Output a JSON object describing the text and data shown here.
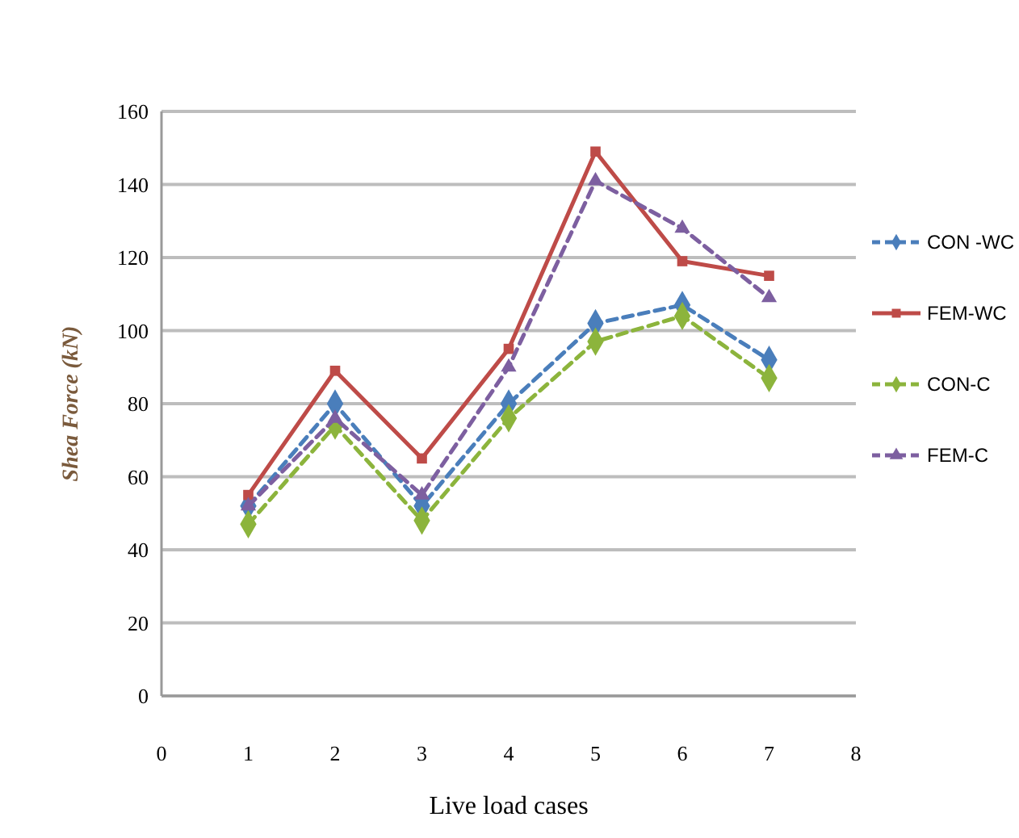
{
  "chart_data": {
    "type": "line",
    "xlabel": "Live  load cases",
    "ylabel": "Shea Force  (kN)",
    "x": [
      1,
      2,
      3,
      4,
      5,
      6,
      7
    ],
    "xlim": [
      0,
      8
    ],
    "xticks": [
      0,
      1,
      2,
      3,
      4,
      5,
      6,
      7,
      8
    ],
    "ylim": [
      0,
      160
    ],
    "yticks": [
      0,
      20,
      40,
      60,
      80,
      100,
      120,
      140,
      160
    ],
    "grid": "y",
    "legend": "right",
    "series": [
      {
        "name": "CON -WC",
        "color": "#4a7ebb",
        "marker": "diamond",
        "line_style": "dashed",
        "values": [
          52,
          80,
          52,
          80,
          102,
          107,
          92
        ]
      },
      {
        "name": "FEM-WC",
        "color": "#be4b48",
        "marker": "square",
        "line_style": "solid",
        "values": [
          55,
          89,
          65,
          95,
          149,
          119,
          115
        ]
      },
      {
        "name": "CON-C",
        "color": "#8cb43c",
        "marker": "diamond",
        "line_style": "dashed",
        "values": [
          47,
          74,
          48,
          76,
          97,
          104,
          87
        ]
      },
      {
        "name": "FEM-C",
        "color": "#7d5fa0",
        "marker": "triangle",
        "line_style": "dashed",
        "values": [
          52,
          76,
          55,
          90,
          141,
          128,
          109
        ]
      }
    ]
  }
}
